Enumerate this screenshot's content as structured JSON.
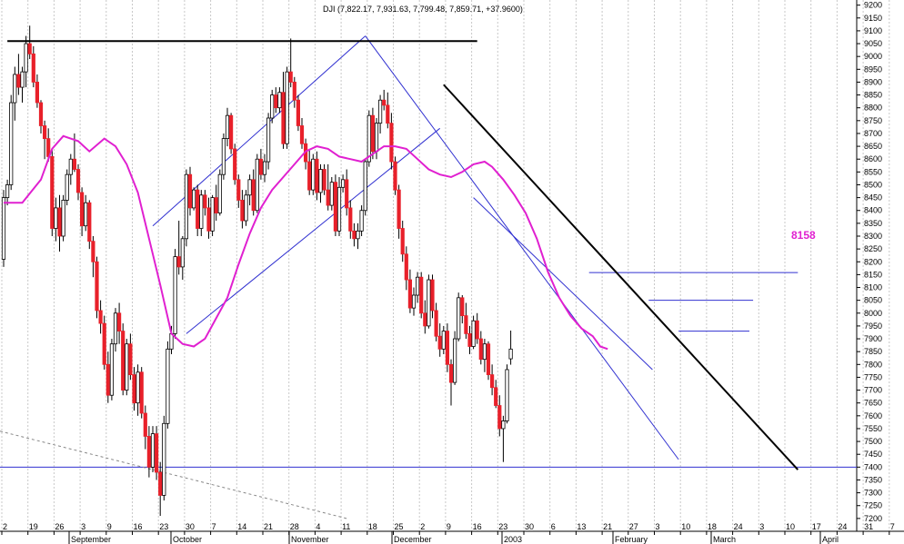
{
  "chart_data": {
    "type": "candlestick",
    "title": "DJI (7,822.17, 7,931.63, 7,799.48, 7,859.71, +37.9600)",
    "ylim": [
      7150,
      9220
    ],
    "y_ticks": [
      7200,
      7250,
      7300,
      7350,
      7400,
      7450,
      7500,
      7550,
      7600,
      7650,
      7700,
      7750,
      7800,
      7850,
      7900,
      7950,
      8000,
      8050,
      8100,
      8150,
      8200,
      8250,
      8300,
      8350,
      8400,
      8450,
      8500,
      8550,
      8600,
      8650,
      8700,
      8750,
      8800,
      8850,
      8900,
      8950,
      9000,
      9050,
      9100,
      9150,
      9200
    ],
    "x_day_labels": [
      "2",
      "19",
      "26",
      "3",
      "9",
      "16",
      "23",
      "30",
      "7",
      "14",
      "21",
      "28",
      "4",
      "11",
      "18",
      "25",
      "2",
      "9",
      "16",
      "23",
      "30",
      "6",
      "13",
      "21",
      "27",
      "3",
      "10",
      "18",
      "24",
      "3",
      "10",
      "17",
      "24",
      "31",
      "7"
    ],
    "x_month_labels": [
      "September",
      "October",
      "November",
      "December",
      "2003",
      "February",
      "March",
      "April"
    ],
    "annotation_label": "8158",
    "colors": {
      "up": "#ffffff",
      "down": "#e8202a",
      "moving_average": "#e020d0",
      "channel": "#3030d0",
      "trendline": "#000000",
      "support_line": "#3030d0",
      "label": "#e020d0"
    },
    "ohlc": [
      [
        8210,
        8480,
        8180,
        8450
      ],
      [
        8450,
        8520,
        8420,
        8500
      ],
      [
        8500,
        8850,
        8480,
        8820
      ],
      [
        8820,
        8960,
        8750,
        8930
      ],
      [
        8930,
        9010,
        8850,
        8880
      ],
      [
        8880,
        8960,
        8820,
        8940
      ],
      [
        8940,
        9080,
        8880,
        9050
      ],
      [
        9050,
        9120,
        8990,
        9010
      ],
      [
        9010,
        9040,
        8880,
        8900
      ],
      [
        8900,
        8930,
        8800,
        8820
      ],
      [
        8820,
        8830,
        8700,
        8730
      ],
      [
        8730,
        8750,
        8600,
        8680
      ],
      [
        8680,
        8720,
        8590,
        8610
      ],
      [
        8610,
        8640,
        8300,
        8330
      ],
      [
        8330,
        8450,
        8280,
        8410
      ],
      [
        8410,
        8460,
        8240,
        8300
      ],
      [
        8300,
        8460,
        8280,
        8440
      ],
      [
        8440,
        8560,
        8420,
        8540
      ],
      [
        8540,
        8620,
        8500,
        8600
      ],
      [
        8600,
        8700,
        8550,
        8560
      ],
      [
        8560,
        8580,
        8440,
        8470
      ],
      [
        8470,
        8490,
        8300,
        8340
      ],
      [
        8340,
        8460,
        8320,
        8430
      ],
      [
        8430,
        8440,
        8250,
        8280
      ],
      [
        8280,
        8300,
        8140,
        8200
      ],
      [
        8200,
        8220,
        7980,
        8010
      ],
      [
        8010,
        8050,
        7920,
        7960
      ],
      [
        7960,
        7990,
        7780,
        7800
      ],
      [
        7800,
        7850,
        7650,
        7680
      ],
      [
        7680,
        7900,
        7660,
        7880
      ],
      [
        7880,
        8020,
        7850,
        8000
      ],
      [
        8000,
        8040,
        7880,
        7930
      ],
      [
        7930,
        7960,
        7680,
        7700
      ],
      [
        7700,
        7900,
        7680,
        7880
      ],
      [
        7880,
        7920,
        7740,
        7760
      ],
      [
        7760,
        7790,
        7620,
        7650
      ],
      [
        7650,
        7800,
        7600,
        7770
      ],
      [
        7770,
        7790,
        7590,
        7610
      ],
      [
        7610,
        7640,
        7470,
        7520
      ],
      [
        7520,
        7560,
        7360,
        7400
      ],
      [
        7400,
        7560,
        7380,
        7530
      ],
      [
        7530,
        7560,
        7350,
        7380
      ],
      [
        7380,
        7420,
        7210,
        7290
      ],
      [
        7290,
        7600,
        7270,
        7570
      ],
      [
        7570,
        7890,
        7550,
        7860
      ],
      [
        7860,
        7950,
        7840,
        7920
      ],
      [
        7920,
        8250,
        7900,
        8220
      ],
      [
        8220,
        8360,
        8150,
        8180
      ],
      [
        8180,
        8300,
        8130,
        8290
      ],
      [
        8290,
        8560,
        8260,
        8540
      ],
      [
        8540,
        8570,
        8380,
        8410
      ],
      [
        8410,
        8490,
        8400,
        8480
      ],
      [
        8480,
        8500,
        8300,
        8330
      ],
      [
        8330,
        8480,
        8300,
        8460
      ],
      [
        8460,
        8480,
        8380,
        8410
      ],
      [
        8410,
        8450,
        8290,
        8320
      ],
      [
        8320,
        8460,
        8300,
        8450
      ],
      [
        8450,
        8500,
        8360,
        8390
      ],
      [
        8390,
        8560,
        8380,
        8540
      ],
      [
        8540,
        8700,
        8520,
        8680
      ],
      [
        8680,
        8800,
        8650,
        8770
      ],
      [
        8770,
        8780,
        8620,
        8640
      ],
      [
        8640,
        8660,
        8500,
        8520
      ],
      [
        8520,
        8540,
        8410,
        8440
      ],
      [
        8440,
        8480,
        8330,
        8360
      ],
      [
        8360,
        8480,
        8340,
        8460
      ],
      [
        8460,
        8540,
        8420,
        8520
      ],
      [
        8520,
        8560,
        8380,
        8400
      ],
      [
        8400,
        8620,
        8390,
        8600
      ],
      [
        8600,
        8640,
        8520,
        8540
      ],
      [
        8540,
        8620,
        8510,
        8590
      ],
      [
        8590,
        8780,
        8560,
        8760
      ],
      [
        8760,
        8870,
        8740,
        8850
      ],
      [
        8850,
        8880,
        8780,
        8800
      ],
      [
        8800,
        8880,
        8780,
        8860
      ],
      [
        8860,
        8940,
        8640,
        8660
      ],
      [
        8660,
        8960,
        8640,
        8940
      ],
      [
        8940,
        9070,
        8880,
        8900
      ],
      [
        8900,
        8920,
        8800,
        8830
      ],
      [
        8830,
        8850,
        8710,
        8730
      ],
      [
        8730,
        8760,
        8640,
        8660
      ],
      [
        8660,
        8680,
        8560,
        8590
      ],
      [
        8590,
        8640,
        8460,
        8480
      ],
      [
        8480,
        8620,
        8460,
        8600
      ],
      [
        8600,
        8630,
        8440,
        8470
      ],
      [
        8470,
        8580,
        8430,
        8560
      ],
      [
        8560,
        8580,
        8460,
        8480
      ],
      [
        8480,
        8580,
        8400,
        8420
      ],
      [
        8420,
        8530,
        8400,
        8510
      ],
      [
        8510,
        8540,
        8300,
        8320
      ],
      [
        8320,
        8530,
        8300,
        8490
      ],
      [
        8490,
        8540,
        8470,
        8520
      ],
      [
        8520,
        8560,
        8380,
        8410
      ],
      [
        8410,
        8440,
        8290,
        8320
      ],
      [
        8320,
        8350,
        8260,
        8290
      ],
      [
        8290,
        8350,
        8250,
        8320
      ],
      [
        8320,
        8420,
        8300,
        8400
      ],
      [
        8400,
        8600,
        8380,
        8590
      ],
      [
        8590,
        8790,
        8570,
        8770
      ],
      [
        8770,
        8800,
        8600,
        8630
      ],
      [
        8630,
        8760,
        8600,
        8740
      ],
      [
        8740,
        8850,
        8700,
        8830
      ],
      [
        8830,
        8870,
        8790,
        8810
      ],
      [
        8810,
        8860,
        8720,
        8740
      ],
      [
        8740,
        8780,
        8560,
        8590
      ],
      [
        8590,
        8610,
        8460,
        8480
      ],
      [
        8480,
        8500,
        8290,
        8330
      ],
      [
        8330,
        8360,
        8200,
        8230
      ],
      [
        8230,
        8260,
        8090,
        8130
      ],
      [
        8130,
        8170,
        8000,
        8020
      ],
      [
        8020,
        8100,
        7990,
        8070
      ],
      [
        8070,
        8160,
        8040,
        8140
      ],
      [
        8140,
        8160,
        7980,
        8000
      ],
      [
        8000,
        8050,
        7920,
        7950
      ],
      [
        7950,
        8150,
        7940,
        8130
      ],
      [
        8130,
        8150,
        7980,
        8010
      ],
      [
        8010,
        8040,
        7890,
        7910
      ],
      [
        7910,
        7960,
        7830,
        7860
      ],
      [
        7860,
        7950,
        7840,
        7930
      ],
      [
        7930,
        7960,
        7770,
        7800
      ],
      [
        7800,
        7820,
        7640,
        7730
      ],
      [
        7730,
        7930,
        7720,
        7900
      ],
      [
        7900,
        8080,
        7890,
        8060
      ],
      [
        8060,
        8070,
        7960,
        7990
      ],
      [
        7990,
        8040,
        7900,
        7920
      ],
      [
        7920,
        7950,
        7840,
        7870
      ],
      [
        7870,
        7990,
        7860,
        7970
      ],
      [
        7970,
        8000,
        7880,
        7900
      ],
      [
        7900,
        7930,
        7800,
        7820
      ],
      [
        7820,
        7900,
        7770,
        7880
      ],
      [
        7880,
        7890,
        7740,
        7760
      ],
      [
        7760,
        7800,
        7680,
        7710
      ],
      [
        7710,
        7740,
        7630,
        7640
      ],
      [
        7640,
        7680,
        7520,
        7550
      ],
      [
        7550,
        7600,
        7420,
        7580
      ],
      [
        7580,
        7800,
        7570,
        7780
      ],
      [
        7822,
        7932,
        7799,
        7860
      ]
    ],
    "moving_average": [
      [
        0,
        8430
      ],
      [
        5,
        8430
      ],
      [
        10,
        8520
      ],
      [
        13,
        8640
      ],
      [
        16,
        8690
      ],
      [
        20,
        8670
      ],
      [
        23,
        8630
      ],
      [
        27,
        8680
      ],
      [
        30,
        8650
      ],
      [
        33,
        8580
      ],
      [
        36,
        8470
      ],
      [
        39,
        8290
      ],
      [
        42,
        8110
      ],
      [
        45,
        7920
      ],
      [
        48,
        7880
      ],
      [
        51,
        7870
      ],
      [
        54,
        7900
      ],
      [
        57,
        7980
      ],
      [
        60,
        8060
      ],
      [
        63,
        8190
      ],
      [
        66,
        8310
      ],
      [
        69,
        8410
      ],
      [
        72,
        8480
      ],
      [
        75,
        8530
      ],
      [
        78,
        8580
      ],
      [
        81,
        8630
      ],
      [
        84,
        8650
      ],
      [
        87,
        8640
      ],
      [
        90,
        8610
      ],
      [
        93,
        8600
      ],
      [
        96,
        8590
      ],
      [
        99,
        8620
      ],
      [
        102,
        8650
      ],
      [
        105,
        8650
      ],
      [
        108,
        8640
      ],
      [
        111,
        8600
      ],
      [
        114,
        8560
      ],
      [
        117,
        8540
      ],
      [
        120,
        8530
      ],
      [
        123,
        8550
      ],
      [
        126,
        8580
      ],
      [
        129,
        8590
      ],
      [
        131,
        8570
      ],
      [
        134,
        8520
      ],
      [
        137,
        8460
      ],
      [
        140,
        8390
      ],
      [
        143,
        8290
      ],
      [
        146,
        8160
      ],
      [
        149,
        8060
      ],
      [
        152,
        7990
      ],
      [
        155,
        7940
      ],
      [
        158,
        7910
      ],
      [
        160,
        7870
      ],
      [
        162,
        7860
      ]
    ],
    "channel_lines": [
      [
        [
          40,
          8340
        ],
        [
          97,
          9080
        ]
      ],
      [
        [
          49,
          7920
        ],
        [
          117,
          8720
        ]
      ],
      [
        [
          97,
          9080
        ],
        [
          181,
          7430
        ]
      ],
      [
        [
          126,
          8450
        ],
        [
          174,
          7780
        ]
      ]
    ],
    "trendlines": [
      [
        [
          118,
          8890
        ],
        [
          213,
          7390
        ]
      ],
      [
        [
          1,
          9060
        ],
        [
          127,
          9060
        ]
      ]
    ],
    "resistance_lines": [
      [
        [
          157,
          8158
        ],
        [
          213,
          8158
        ]
      ],
      [
        [
          173,
          8050
        ],
        [
          201,
          8050
        ]
      ],
      [
        [
          181,
          7930
        ],
        [
          200,
          7930
        ]
      ]
    ],
    "support_line": 7400
  }
}
